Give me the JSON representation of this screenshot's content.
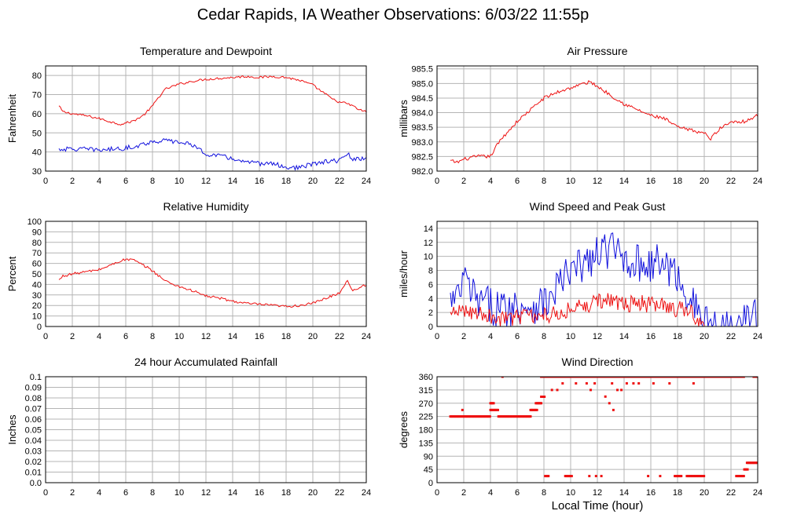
{
  "page": {
    "title": "Cedar Rapids, IA Weather Observations: 6/03/22 11:55p",
    "x_axis_title": "Local Time (hour)"
  },
  "colors": {
    "red": "#ee1111",
    "blue": "#1111dd",
    "grid": "#b4b4b4",
    "frame": "#000000"
  },
  "chart_data": [
    {
      "id": "temp",
      "type": "line",
      "title": "Temperature and Dewpoint",
      "ylabel": "Fahrenheit",
      "xlim": [
        0,
        24
      ],
      "ylim": [
        30,
        85
      ],
      "xticks": [
        2,
        4,
        6,
        8,
        10,
        12,
        14,
        16,
        18,
        20,
        22,
        24
      ],
      "yticks": [
        30,
        40,
        50,
        60,
        70,
        80
      ],
      "series": [
        {
          "color": "red",
          "noise": 0.6,
          "x": [
            1,
            1.3,
            2,
            3,
            4,
            5,
            5.6,
            6.5,
            7.3,
            8,
            8.5,
            9,
            10,
            11,
            12,
            13,
            14,
            15,
            16,
            17,
            18,
            19,
            20,
            20.5,
            21,
            21.5,
            22,
            22.5,
            23,
            23.5,
            24
          ],
          "y": [
            64,
            61,
            60,
            59,
            57.5,
            55.5,
            54.5,
            56,
            59,
            64,
            69,
            73,
            75.5,
            77,
            78,
            78.5,
            79,
            79.5,
            79,
            79.5,
            79,
            77.5,
            75,
            72.5,
            70,
            67.5,
            66,
            65.5,
            64,
            62,
            61
          ]
        },
        {
          "color": "blue",
          "noise": 1.2,
          "x": [
            1,
            2,
            3,
            4,
            5,
            6,
            7,
            8,
            9,
            10,
            11,
            11.5,
            12,
            13,
            14,
            15,
            16,
            17,
            18,
            18.5,
            19,
            20,
            21,
            22,
            22.6,
            23,
            24
          ],
          "y": [
            41.5,
            41.5,
            41.5,
            41,
            41.5,
            42,
            43.5,
            45.5,
            46,
            45,
            44,
            41,
            39,
            38,
            36.5,
            34.5,
            34,
            34,
            32,
            31.5,
            32,
            33.5,
            35,
            35.5,
            39,
            36,
            36.5
          ]
        }
      ]
    },
    {
      "id": "pressure",
      "type": "line",
      "title": "Air Pressure",
      "ylabel": "millibars",
      "xlim": [
        0,
        24
      ],
      "ylim": [
        982.0,
        985.6
      ],
      "xticks": [
        2,
        4,
        6,
        8,
        10,
        12,
        14,
        16,
        18,
        20,
        22,
        24
      ],
      "yticks": [
        982.0,
        982.5,
        983.0,
        983.5,
        984.0,
        984.5,
        985.0,
        985.5
      ],
      "ytick_labels": [
        "982.0",
        "982.5",
        "983.0",
        "983.5",
        "984.0",
        "984.5",
        "985.0",
        "985.5"
      ],
      "series": [
        {
          "color": "red",
          "noise": 0.06,
          "x": [
            1,
            1.5,
            2,
            3,
            4,
            4.5,
            5,
            6,
            7,
            8,
            9,
            10,
            11,
            11.5,
            12,
            13,
            14,
            15,
            16,
            17,
            18,
            19,
            20,
            20.5,
            21,
            22,
            23,
            24
          ],
          "y": [
            982.35,
            982.3,
            982.4,
            982.5,
            982.5,
            982.9,
            983.2,
            983.7,
            984.1,
            984.5,
            984.7,
            984.85,
            985.0,
            985.05,
            984.9,
            984.6,
            984.3,
            984.1,
            983.9,
            983.8,
            983.5,
            983.4,
            983.3,
            983.1,
            983.4,
            983.7,
            983.7,
            983.9
          ]
        }
      ]
    },
    {
      "id": "humidity",
      "type": "line",
      "title": "Relative Humidity",
      "ylabel": "Percent",
      "xlim": [
        0,
        24
      ],
      "ylim": [
        0,
        100
      ],
      "xticks": [
        2,
        4,
        6,
        8,
        10,
        12,
        14,
        16,
        18,
        20,
        22,
        24
      ],
      "yticks": [
        0,
        10,
        20,
        30,
        40,
        50,
        60,
        70,
        80,
        90,
        100
      ],
      "series": [
        {
          "color": "red",
          "noise": 1.2,
          "x": [
            1,
            1.3,
            2,
            3,
            4,
            5,
            5.7,
            6.5,
            7,
            7.5,
            8,
            8.5,
            9,
            10,
            11,
            12,
            13,
            14,
            15,
            16,
            17,
            18,
            19,
            20,
            21,
            22,
            22.6,
            23,
            23.5,
            24
          ],
          "y": [
            44,
            48,
            50,
            52,
            54,
            59,
            63,
            64,
            60,
            57,
            53,
            48,
            43,
            38,
            34,
            29,
            27,
            24,
            22,
            21,
            20,
            19,
            20,
            22,
            27,
            32,
            44,
            34,
            37,
            40
          ]
        }
      ]
    },
    {
      "id": "wind",
      "type": "line",
      "title": "Wind Speed and Peak Gust",
      "ylabel": "miles/hour",
      "xlim": [
        0,
        24
      ],
      "ylim": [
        0,
        15
      ],
      "xticks": [
        2,
        4,
        6,
        8,
        10,
        12,
        14,
        16,
        18,
        20,
        22,
        24
      ],
      "yticks": [
        0,
        2,
        4,
        6,
        8,
        10,
        12,
        14
      ],
      "series": [
        {
          "color": "blue",
          "noise": 2.8,
          "x": [
            1,
            1.5,
            2,
            2.5,
            3,
            4,
            5,
            6,
            7,
            8,
            8.5,
            9,
            10,
            11,
            12,
            12.5,
            13,
            14,
            15,
            16,
            17,
            18,
            19,
            19.5,
            20,
            20.3,
            22.3,
            22.6,
            23,
            24
          ],
          "y": [
            3.5,
            3.5,
            7,
            5,
            3.5,
            3,
            2.5,
            3,
            3,
            3.5,
            3.5,
            6,
            7.5,
            9,
            10,
            11,
            11,
            10,
            9,
            9,
            9,
            7,
            4,
            2,
            0.5,
            0,
            0,
            2,
            1.5,
            1
          ]
        },
        {
          "color": "red",
          "noise": 1.2,
          "x": [
            1,
            2,
            3,
            4,
            5,
            6,
            7,
            8,
            9,
            10,
            11,
            12,
            13,
            14,
            15,
            16,
            17,
            18,
            19,
            19.5,
            20
          ],
          "y": [
            1.5,
            2.5,
            2,
            1.5,
            1,
            1.5,
            1.5,
            1.5,
            2,
            2.5,
            3,
            3.5,
            4,
            3,
            3.5,
            3,
            3,
            2.5,
            2,
            0.5,
            0
          ]
        }
      ]
    },
    {
      "id": "rainfall",
      "type": "line",
      "title": "24 hour Accumulated Rainfall",
      "ylabel": "Inches",
      "xlim": [
        0,
        24
      ],
      "ylim": [
        0,
        0.1
      ],
      "xticks": [
        2,
        4,
        6,
        8,
        10,
        12,
        14,
        16,
        18,
        20,
        22,
        24
      ],
      "yticks": [
        0,
        0.01,
        0.02,
        0.03,
        0.04,
        0.05,
        0.06,
        0.07,
        0.08,
        0.09,
        0.1
      ],
      "ytick_labels": [
        "0.0",
        "0.01",
        "0.02",
        "0.03",
        "0.04",
        "0.05",
        "0.06",
        "0.07",
        "0.08",
        "0.09",
        "0.1"
      ],
      "series": [
        {
          "color": "red",
          "noise": 0,
          "x": [
            1,
            24
          ],
          "y": [
            0,
            0
          ]
        }
      ]
    },
    {
      "id": "direction",
      "type": "scatter",
      "title": "Wind Direction",
      "ylabel": "degrees",
      "xlim": [
        0,
        24
      ],
      "ylim": [
        0,
        360
      ],
      "xticks": [
        2,
        4,
        6,
        8,
        10,
        12,
        14,
        16,
        18,
        20,
        22,
        24
      ],
      "yticks": [
        0,
        45,
        90,
        135,
        180,
        225,
        270,
        315,
        360
      ],
      "segments": [
        {
          "x0": 1.0,
          "x1": 4.0,
          "y": 225
        },
        {
          "x0": 4.0,
          "x1": 4.3,
          "y": 270
        },
        {
          "x0": 4.0,
          "x1": 4.6,
          "y": 247
        },
        {
          "x0": 4.6,
          "x1": 7.0,
          "y": 225
        },
        {
          "x0": 7.0,
          "x1": 7.5,
          "y": 247
        },
        {
          "x0": 7.4,
          "x1": 7.8,
          "y": 270
        },
        {
          "x0": 7.8,
          "x1": 8.1,
          "y": 292
        },
        {
          "x0": 7.8,
          "x1": 20.0,
          "y": 360
        },
        {
          "x0": 20.0,
          "x1": 23.0,
          "y": 360
        },
        {
          "x0": 23.7,
          "x1": 24.0,
          "y": 360
        },
        {
          "x0": 8.1,
          "x1": 8.4,
          "y": 22.5
        },
        {
          "x0": 9.6,
          "x1": 10.1,
          "y": 22.5
        },
        {
          "x0": 17.8,
          "x1": 18.3,
          "y": 22.5
        },
        {
          "x0": 18.7,
          "x1": 20.0,
          "y": 22.5
        },
        {
          "x0": 22.4,
          "x1": 23.0,
          "y": 22.5
        },
        {
          "x0": 23.0,
          "x1": 23.3,
          "y": 45
        },
        {
          "x0": 23.2,
          "x1": 24.0,
          "y": 67.5
        }
      ],
      "points": [
        [
          1.9,
          247
        ],
        [
          4.9,
          360
        ],
        [
          8.6,
          315
        ],
        [
          9.0,
          315
        ],
        [
          9.4,
          337.5
        ],
        [
          10.4,
          337.5
        ],
        [
          11.2,
          337.5
        ],
        [
          11.5,
          315
        ],
        [
          11.8,
          337.5
        ],
        [
          12.6,
          292.5
        ],
        [
          12.9,
          270
        ],
        [
          13.2,
          247
        ],
        [
          13.5,
          315
        ],
        [
          13.8,
          315
        ],
        [
          14.2,
          337.5
        ],
        [
          15.1,
          337.5
        ],
        [
          16.2,
          337.5
        ],
        [
          17.4,
          337.5
        ],
        [
          11.4,
          22.5
        ],
        [
          11.9,
          22.5
        ],
        [
          12.3,
          22.5
        ],
        [
          15.8,
          22.5
        ],
        [
          16.7,
          22.5
        ],
        [
          13.1,
          337.5
        ],
        [
          14.7,
          337.5
        ],
        [
          19.2,
          337.5
        ]
      ]
    }
  ]
}
